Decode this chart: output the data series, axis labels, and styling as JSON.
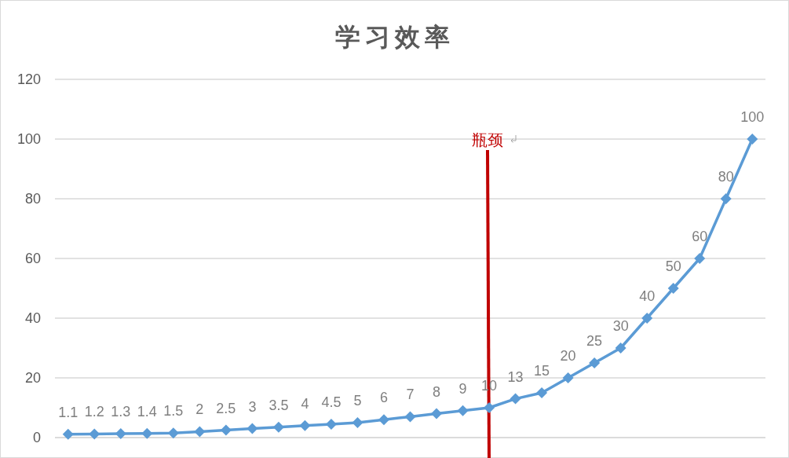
{
  "chart_data": {
    "type": "line",
    "title": "学习效率",
    "categories": [
      null,
      null,
      null,
      null,
      null,
      null,
      null,
      null,
      null,
      null,
      null,
      null,
      null,
      null,
      null,
      null,
      null,
      null,
      null,
      null,
      null,
      null,
      null,
      null,
      null,
      null,
      null
    ],
    "series": [
      {
        "color": "#5b9bd5",
        "values": [
          1.1,
          1.2,
          1.3,
          1.4,
          1.5,
          2,
          2.5,
          3,
          3.5,
          4,
          4.5,
          5,
          6,
          7,
          8,
          9,
          10,
          13,
          15,
          20,
          25,
          30,
          40,
          50,
          60,
          80,
          100
        ]
      }
    ],
    "ylim": [
      0,
      120
    ],
    "yticks": [
      0,
      20,
      40,
      60,
      80,
      100,
      120
    ],
    "grid": "y",
    "marker": "diamond",
    "data_labels": true,
    "tick_labels": "y",
    "annotations": [
      "瓶颈"
    ]
  }
}
